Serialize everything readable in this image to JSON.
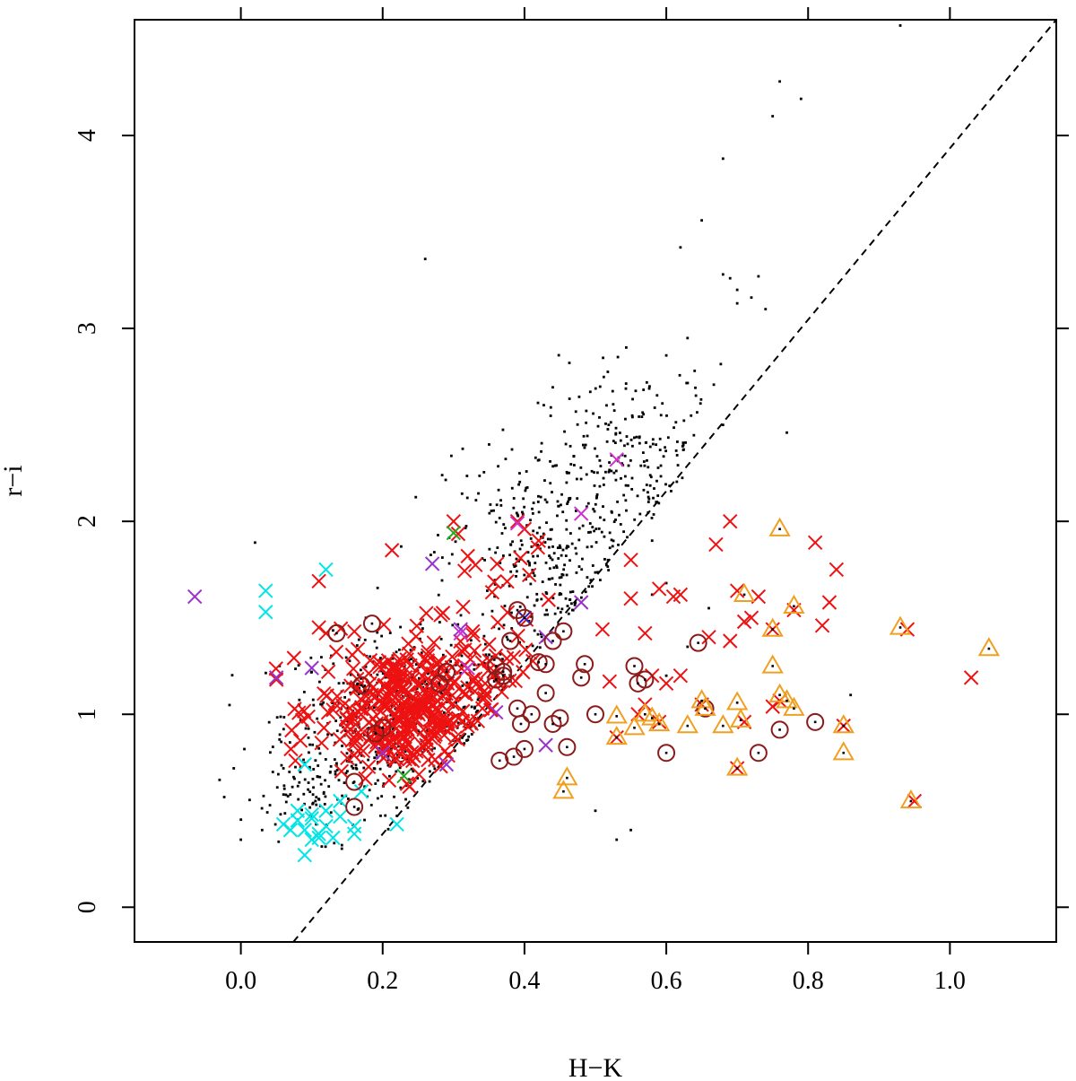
{
  "chart_data": {
    "type": "scatter",
    "xlabel": "H−K",
    "ylabel": "r−i",
    "xlim": [
      -0.15,
      1.15
    ],
    "ylim": [
      -0.18,
      4.6
    ],
    "x_ticks": [
      0.0,
      0.2,
      0.4,
      0.6,
      0.8,
      1.0
    ],
    "x_tick_labels": [
      "0.0",
      "0.2",
      "0.4",
      "0.6",
      "0.8",
      "1.0"
    ],
    "y_ticks": [
      0,
      1,
      2,
      3,
      4
    ],
    "y_tick_labels": [
      "0",
      "1",
      "2",
      "3",
      "4"
    ],
    "grid": false,
    "legend": "none",
    "colors": {
      "black_points": "#000000",
      "red_x": "#ee1111",
      "cyan_x": "#00e5e5",
      "purple_x": "#9933cc",
      "magenta_x": "#cc33cc",
      "green_x": "#22aa22",
      "blue_x": "#2222cc",
      "dark_red_circle": "#8b1a1a",
      "orange_triangle": "#f0a020",
      "dashed_line": "#000000"
    },
    "reference_line": {
      "style": "dashed",
      "points": [
        [
          0.074,
          -0.18
        ],
        [
          1.15,
          4.6
        ]
      ]
    },
    "series": [
      {
        "marker": "dot",
        "color": "black_points",
        "clusters": [
          {
            "cx": 0.23,
            "cy": 1.0,
            "sx": 0.085,
            "sy": 0.2,
            "n": 520
          },
          {
            "cx": 0.43,
            "cy": 1.8,
            "sx": 0.07,
            "sy": 0.3,
            "n": 360
          },
          {
            "cx": 0.56,
            "cy": 2.3,
            "sx": 0.07,
            "sy": 0.25,
            "n": 260
          },
          {
            "cx": 0.12,
            "cy": 0.6,
            "sx": 0.06,
            "sy": 0.12,
            "n": 120
          }
        ],
        "points": [
          [
            0.93,
            4.57
          ],
          [
            0.76,
            4.28
          ],
          [
            0.79,
            4.19
          ],
          [
            0.75,
            4.1
          ],
          [
            0.68,
            3.88
          ],
          [
            0.65,
            3.56
          ],
          [
            0.26,
            3.36
          ],
          [
            0.62,
            3.42
          ],
          [
            0.68,
            3.28
          ],
          [
            0.69,
            3.26
          ],
          [
            0.7,
            3.2
          ],
          [
            0.72,
            3.16
          ],
          [
            0.73,
            3.27
          ],
          [
            0.74,
            3.1
          ],
          [
            0.7,
            3.13
          ],
          [
            0.63,
            2.95
          ],
          [
            0.64,
            2.78
          ],
          [
            0.6,
            2.86
          ],
          [
            0.77,
            2.46
          ],
          [
            0.68,
            2.5
          ],
          [
            0.02,
            1.89
          ],
          [
            -0.03,
            0.66
          ],
          [
            -0.01,
            0.72
          ],
          [
            0.0,
            0.35
          ],
          [
            0.03,
            0.4
          ],
          [
            0.86,
            1.1
          ],
          [
            0.53,
            0.35
          ],
          [
            0.5,
            0.5
          ],
          [
            0.55,
            0.4
          ],
          [
            0.6,
            1.2
          ],
          [
            0.63,
            1.35
          ],
          [
            0.58,
            1.62
          ],
          [
            0.58,
            1.9
          ],
          [
            0.66,
            1.55
          ],
          [
            0.6,
            1.68
          ]
        ]
      },
      {
        "marker": "x",
        "color": "red_x",
        "clusters": [
          {
            "cx": 0.23,
            "cy": 1.02,
            "sx": 0.06,
            "sy": 0.17,
            "n": 330
          },
          {
            "cx": 0.36,
            "cy": 1.3,
            "sx": 0.06,
            "sy": 0.3,
            "n": 60
          }
        ],
        "points": [
          [
            0.3,
            2.0
          ],
          [
            0.4,
            1.96
          ],
          [
            0.39,
            2.0
          ],
          [
            0.42,
            1.9
          ],
          [
            0.32,
            1.82
          ],
          [
            0.55,
            1.8
          ],
          [
            0.69,
            2.0
          ],
          [
            0.67,
            1.88
          ],
          [
            0.81,
            1.89
          ],
          [
            0.84,
            1.75
          ],
          [
            0.83,
            1.58
          ],
          [
            0.82,
            1.46
          ],
          [
            0.59,
            1.65
          ],
          [
            0.62,
            1.62
          ],
          [
            0.61,
            1.61
          ],
          [
            0.66,
            1.4
          ],
          [
            0.69,
            1.38
          ],
          [
            0.71,
            1.48
          ],
          [
            0.72,
            1.5
          ],
          [
            0.75,
            1.44
          ],
          [
            0.7,
            1.64
          ],
          [
            0.73,
            1.61
          ],
          [
            0.51,
            1.44
          ],
          [
            0.57,
            1.42
          ],
          [
            0.55,
            1.6
          ],
          [
            0.52,
            1.17
          ],
          [
            0.58,
            1.2
          ],
          [
            0.62,
            1.2
          ],
          [
            0.56,
            1.0
          ],
          [
            0.6,
            1.16
          ],
          [
            1.03,
            1.19
          ],
          [
            0.94,
            1.44
          ],
          [
            0.78,
            1.54
          ],
          [
            0.11,
            1.69
          ],
          [
            0.11,
            1.45
          ],
          [
            0.12,
            1.42
          ],
          [
            0.05,
            1.18
          ],
          [
            0.57,
            1.05
          ],
          [
            0.65,
            1.05
          ],
          [
            0.53,
            0.88
          ],
          [
            0.59,
            0.96
          ],
          [
            0.71,
            0.96
          ],
          [
            0.75,
            1.04
          ],
          [
            0.76,
            1.07
          ],
          [
            0.85,
            0.94
          ],
          [
            0.95,
            0.55
          ],
          [
            0.7,
            0.72
          ]
        ]
      },
      {
        "marker": "x",
        "color": "cyan_x",
        "points": [
          [
            0.035,
            1.64
          ],
          [
            0.035,
            1.53
          ],
          [
            0.12,
            1.75
          ],
          [
            0.09,
            0.27
          ],
          [
            0.1,
            0.35
          ],
          [
            0.09,
            0.4
          ],
          [
            0.08,
            0.45
          ],
          [
            0.11,
            0.38
          ],
          [
            0.12,
            0.42
          ],
          [
            0.1,
            0.48
          ],
          [
            0.07,
            0.4
          ],
          [
            0.13,
            0.36
          ],
          [
            0.14,
            0.47
          ],
          [
            0.16,
            0.38
          ],
          [
            0.16,
            0.42
          ],
          [
            0.22,
            0.43
          ],
          [
            0.06,
            0.43
          ],
          [
            0.12,
            0.5
          ],
          [
            0.08,
            0.5
          ],
          [
            0.09,
            0.74
          ],
          [
            0.17,
            0.6
          ],
          [
            0.14,
            0.55
          ],
          [
            0.1,
            0.46
          ],
          [
            0.11,
            0.36
          ]
        ]
      },
      {
        "marker": "x",
        "color": "purple_x",
        "points": [
          [
            -0.065,
            1.61
          ],
          [
            0.05,
            1.19
          ],
          [
            0.27,
            1.78
          ],
          [
            0.1,
            1.24
          ],
          [
            0.29,
            0.74
          ],
          [
            0.43,
            0.84
          ],
          [
            0.48,
            1.58
          ],
          [
            0.36,
            1.01
          ],
          [
            0.43,
            1.4
          ],
          [
            0.2,
            0.8
          ],
          [
            0.31,
            1.44
          ]
        ]
      },
      {
        "marker": "x",
        "color": "magenta_x",
        "points": [
          [
            0.53,
            2.32
          ],
          [
            0.48,
            2.04
          ],
          [
            0.39,
            1.99
          ],
          [
            0.31,
            1.42
          ],
          [
            0.32,
            1.24
          ]
        ]
      },
      {
        "marker": "x",
        "color": "green_x",
        "points": [
          [
            0.3,
            1.94
          ],
          [
            0.23,
            0.68
          ]
        ]
      },
      {
        "marker": "x",
        "color": "blue_x",
        "points": [
          [
            0.4,
            1.5
          ]
        ]
      },
      {
        "marker": "circle",
        "color": "dark_red_circle",
        "points": [
          [
            0.135,
            1.42
          ],
          [
            0.185,
            1.47
          ],
          [
            0.17,
            1.15
          ],
          [
            0.19,
            0.9
          ],
          [
            0.2,
            0.93
          ],
          [
            0.16,
            0.65
          ],
          [
            0.16,
            0.52
          ],
          [
            0.28,
            1.16
          ],
          [
            0.29,
            1.22
          ],
          [
            0.36,
            1.25
          ],
          [
            0.37,
            1.22
          ],
          [
            0.38,
            1.38
          ],
          [
            0.39,
            1.54
          ],
          [
            0.4,
            1.5
          ],
          [
            0.36,
            1.18
          ],
          [
            0.37,
            1.2
          ],
          [
            0.39,
            1.03
          ],
          [
            0.395,
            0.95
          ],
          [
            0.4,
            0.82
          ],
          [
            0.385,
            0.78
          ],
          [
            0.365,
            0.76
          ],
          [
            0.41,
            1.0
          ],
          [
            0.42,
            1.27
          ],
          [
            0.43,
            1.26
          ],
          [
            0.43,
            1.11
          ],
          [
            0.44,
            1.38
          ],
          [
            0.44,
            0.95
          ],
          [
            0.45,
            0.98
          ],
          [
            0.455,
            1.43
          ],
          [
            0.46,
            0.83
          ],
          [
            0.48,
            1.19
          ],
          [
            0.485,
            1.26
          ],
          [
            0.5,
            1.0
          ],
          [
            0.555,
            1.25
          ],
          [
            0.56,
            1.16
          ],
          [
            0.57,
            1.18
          ],
          [
            0.6,
            0.8
          ],
          [
            0.645,
            1.37
          ],
          [
            0.655,
            1.03
          ],
          [
            0.73,
            0.8
          ],
          [
            0.76,
            0.92
          ],
          [
            0.81,
            0.96
          ]
        ]
      },
      {
        "marker": "triangle",
        "color": "orange_triangle",
        "points": [
          [
            0.76,
            1.96
          ],
          [
            0.71,
            1.62
          ],
          [
            0.78,
            1.56
          ],
          [
            0.75,
            1.44
          ],
          [
            0.75,
            1.25
          ],
          [
            0.76,
            1.1
          ],
          [
            0.77,
            1.07
          ],
          [
            0.78,
            1.03
          ],
          [
            0.65,
            1.07
          ],
          [
            0.655,
            1.03
          ],
          [
            0.7,
            1.06
          ],
          [
            0.705,
            0.97
          ],
          [
            0.68,
            0.94
          ],
          [
            0.63,
            0.94
          ],
          [
            0.59,
            0.95
          ],
          [
            0.58,
            0.98
          ],
          [
            0.57,
            1.0
          ],
          [
            0.53,
            0.99
          ],
          [
            0.53,
            0.88
          ],
          [
            0.555,
            0.93
          ],
          [
            0.46,
            0.67
          ],
          [
            0.455,
            0.6
          ],
          [
            0.7,
            0.72
          ],
          [
            0.85,
            0.94
          ],
          [
            0.85,
            0.8
          ],
          [
            0.93,
            1.45
          ],
          [
            0.945,
            0.55
          ],
          [
            1.055,
            1.34
          ]
        ]
      }
    ]
  }
}
